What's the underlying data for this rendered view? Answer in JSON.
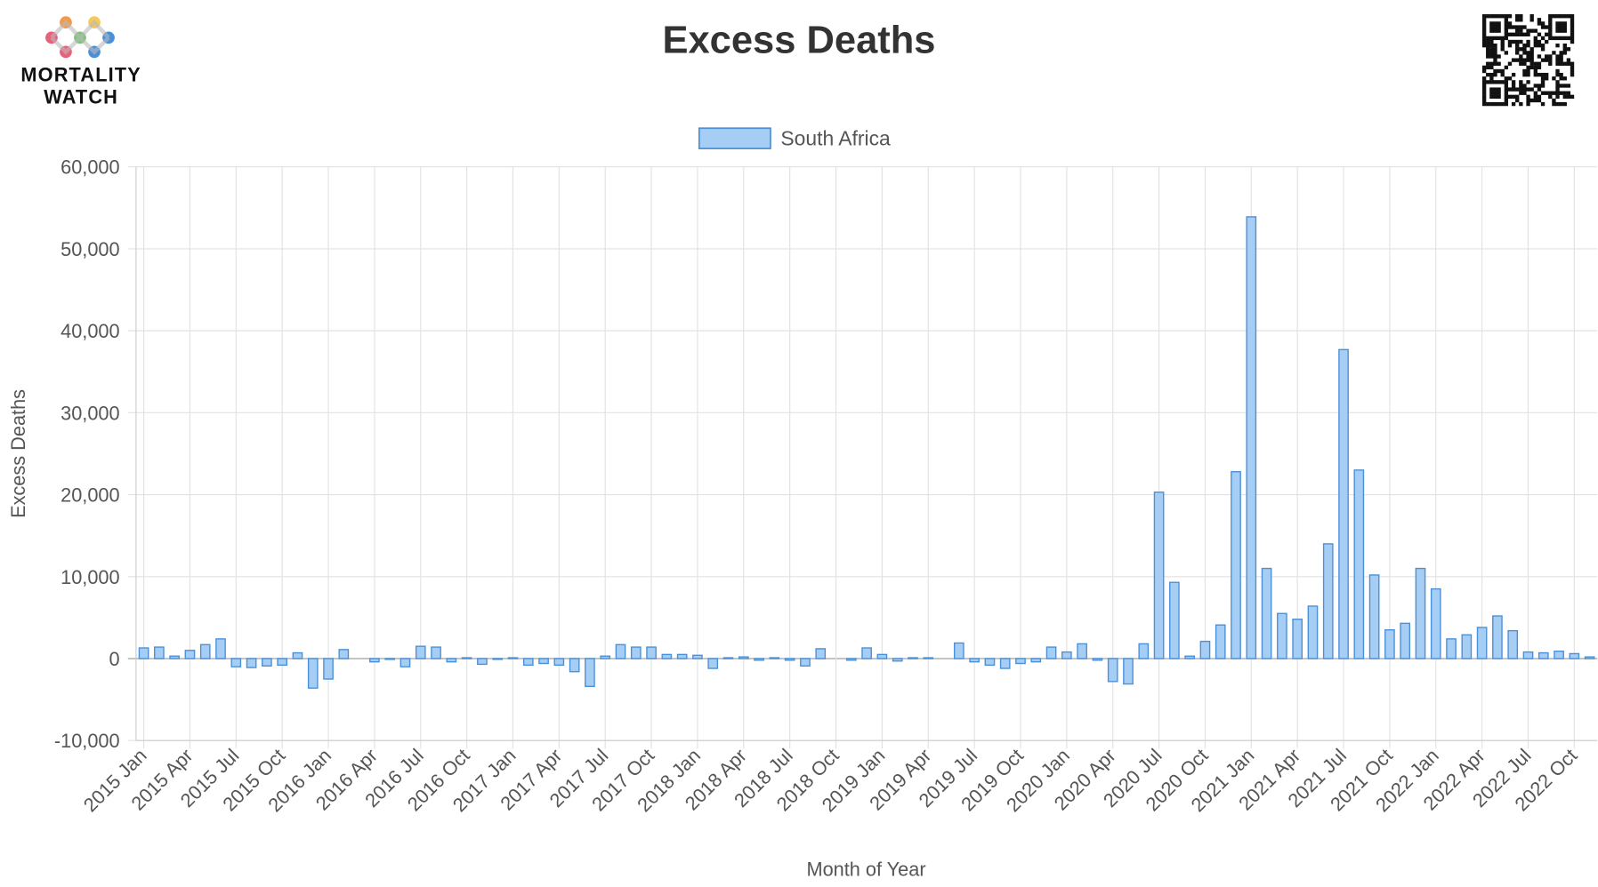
{
  "logo": [
    "MORTALITY",
    "WATCH"
  ],
  "chart_data": {
    "type": "bar",
    "title": "Excess Deaths",
    "xlabel": "Month of Year",
    "ylabel": "Excess Deaths",
    "legend_position": "top",
    "grid": true,
    "series": [
      {
        "name": "South Africa",
        "color": "#a6cdf3",
        "edge_color": "#4a90d9",
        "values": [
          1300,
          1400,
          300,
          1000,
          1700,
          2400,
          -1000,
          -1100,
          -900,
          -800,
          700,
          -3600,
          -2500,
          1100,
          0,
          -400,
          -100,
          -1000,
          1500,
          1400,
          -400,
          100,
          -700,
          -100,
          100,
          -800,
          -600,
          -800,
          -1600,
          -3400,
          300,
          1700,
          1400,
          1400,
          500,
          500,
          400,
          -1200,
          100,
          200,
          -200,
          100,
          -200,
          -900,
          1200,
          0,
          -200,
          1300,
          500,
          -300,
          100,
          100,
          0,
          1900,
          -400,
          -800,
          -1200,
          -600,
          -400,
          1400,
          800,
          1800,
          -200,
          -2800,
          -3100,
          1800,
          20300,
          9300,
          300,
          2100,
          4100,
          22800,
          53900,
          11000,
          5500,
          4800,
          6400,
          14000,
          37700,
          23000,
          10200,
          3500,
          4300,
          11000,
          8500,
          2400,
          2900,
          3800,
          5200,
          3400,
          800,
          700,
          900,
          600,
          200
        ]
      }
    ],
    "categories": [
      "2015 Jan",
      null,
      null,
      "2015 Apr",
      null,
      null,
      "2015 Jul",
      null,
      null,
      "2015 Oct",
      null,
      null,
      "2016 Jan",
      null,
      null,
      "2016 Apr",
      null,
      null,
      "2016 Jul",
      null,
      null,
      "2016 Oct",
      null,
      null,
      "2017 Jan",
      null,
      null,
      "2017 Apr",
      null,
      null,
      "2017 Jul",
      null,
      null,
      "2017 Oct",
      null,
      null,
      "2018 Jan",
      null,
      null,
      "2018 Apr",
      null,
      null,
      "2018 Jul",
      null,
      null,
      "2018 Oct",
      null,
      null,
      "2019 Jan",
      null,
      null,
      "2019 Apr",
      null,
      null,
      "2019 Jul",
      null,
      null,
      "2019 Oct",
      null,
      null,
      "2020 Jan",
      null,
      null,
      "2020 Apr",
      null,
      null,
      "2020 Jul",
      null,
      null,
      "2020 Oct",
      null,
      null,
      "2021 Jan",
      null,
      null,
      "2021 Apr",
      null,
      null,
      "2021 Jul",
      null,
      null,
      "2021 Oct",
      null,
      null,
      "2022 Jan",
      null,
      null,
      "2022 Apr",
      null,
      null,
      "2022 Jul",
      null,
      null,
      "2022 Oct",
      null
    ],
    "ylim": [
      -10000,
      60000
    ],
    "yticks": [
      {
        "value": -10000,
        "label": "-10,000"
      },
      0,
      {
        "value": 10000,
        "label": "10,000"
      },
      {
        "value": 20000,
        "label": "20,000"
      },
      {
        "value": 30000,
        "label": "30,000"
      },
      {
        "value": 40000,
        "label": "40,000"
      },
      {
        "value": 50000,
        "label": "50,000"
      },
      {
        "value": 60000,
        "label": "60,000"
      }
    ]
  }
}
